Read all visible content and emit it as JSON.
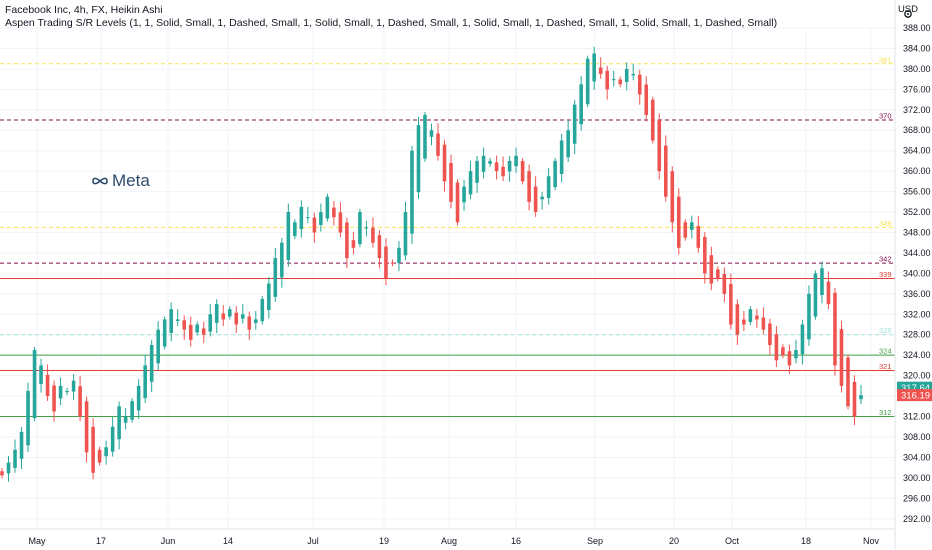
{
  "header": {
    "title": "Facebook Inc, 4h, FX, Heikin Ashi",
    "indicator": "Aspen Trading S/R Levels (1, 1, Solid, Small, 1, Dashed, Small, 1, Solid, Small, 1, Dashed, Small, 1, Solid, Small, 1, Dashed, Small, 1, Solid, Small, 1, Dashed, Small)"
  },
  "currency": "USD",
  "logo": {
    "text": "Meta",
    "icon": "meta-infinity-icon"
  },
  "colors": {
    "up": "#26a69a",
    "down": "#ef5350",
    "gridline": "#f0f3fa",
    "axis_text": "#131722"
  },
  "chart_data": {
    "type": "candlestick",
    "style": "Heikin Ashi",
    "ylim": [
      290,
      388
    ],
    "yticks": [
      "292.00",
      "296.00",
      "300.00",
      "304.00",
      "308.00",
      "312.00",
      "316.00",
      "320.00",
      "324.00",
      "328.00",
      "332.00",
      "336.00",
      "340.00",
      "344.00",
      "348.00",
      "352.00",
      "356.00",
      "360.00",
      "364.00",
      "368.00",
      "372.00",
      "376.00",
      "380.00",
      "384.00",
      "388.00"
    ],
    "xticks": [
      "May",
      "17",
      "Jun",
      "14",
      "Jul",
      "19",
      "Aug",
      "16",
      "Sep",
      "20",
      "Oct",
      "18",
      "Nov"
    ],
    "price_badges": [
      {
        "label": "317.64",
        "value": 317.64,
        "color": "#26a69a"
      },
      {
        "label": "316.19",
        "value": 316.19,
        "color": "#ef5350"
      }
    ],
    "levels": [
      {
        "label": "381",
        "value": 381,
        "color": "#f5e356",
        "style": "dashed"
      },
      {
        "label": "370",
        "value": 370,
        "color": "#880e4f",
        "style": "dashed"
      },
      {
        "label": "349",
        "value": 349,
        "color": "#f5e356",
        "style": "dashed"
      },
      {
        "label": "342",
        "value": 342,
        "color": "#880e4f",
        "style": "dashed"
      },
      {
        "label": "339",
        "value": 339,
        "color": "#e53935",
        "style": "solid"
      },
      {
        "label": "328",
        "value": 328,
        "color": "#a5e5dd",
        "style": "dashed"
      },
      {
        "label": "324",
        "value": 324,
        "color": "#43a047",
        "style": "solid"
      },
      {
        "label": "321",
        "value": 321,
        "color": "#e53935",
        "style": "solid"
      },
      {
        "label": "312",
        "value": 312,
        "color": "#43a047",
        "style": "solid"
      }
    ],
    "closes": [
      300.5,
      303,
      305.5,
      309,
      317,
      325,
      322,
      316,
      313,
      318,
      317,
      319,
      312,
      305,
      301,
      303,
      306,
      310,
      314,
      312,
      315,
      318,
      322,
      326,
      329,
      331,
      333,
      331,
      329,
      327,
      330,
      328,
      332,
      334,
      331,
      333,
      330,
      332,
      329,
      331,
      335,
      338,
      343,
      346,
      352,
      350,
      353,
      351,
      348,
      352,
      355,
      351,
      348,
      343,
      345,
      352,
      349,
      346,
      343,
      339,
      342,
      345,
      352,
      364,
      369,
      371,
      368,
      363,
      358,
      354,
      350,
      357,
      360,
      362,
      363,
      362,
      360,
      359,
      362,
      363,
      358,
      354,
      352,
      355,
      359,
      362,
      366,
      368,
      373,
      377,
      382,
      383,
      379,
      376,
      378,
      377,
      380,
      379,
      375,
      371,
      366,
      360,
      355,
      350,
      345,
      347,
      350,
      345,
      340,
      338,
      339,
      336,
      330,
      328,
      330,
      333,
      331,
      329,
      326,
      323,
      324,
      322,
      325,
      330,
      336,
      340,
      341,
      334,
      322,
      318,
      314,
      312,
      316.19
    ],
    "x_start": "Apr 28",
    "x_end": "Oct 29"
  }
}
